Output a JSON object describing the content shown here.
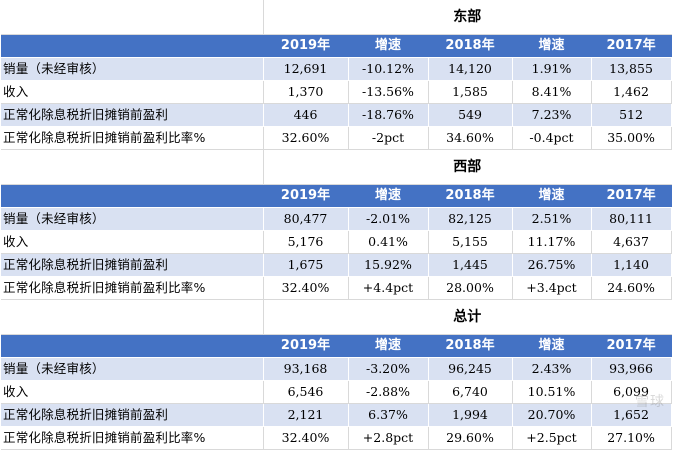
{
  "sections": [
    {
      "region": "东部",
      "headers": [
        "",
        "2019年",
        "增速",
        "2018年",
        "增速",
        "2017年"
      ],
      "rows": [
        {
          "label": "销量（未经审核）",
          "cells": [
            "12,691",
            "-10.12%",
            "14,120",
            "1.91%",
            "13,855"
          ]
        },
        {
          "label": "收入",
          "cells": [
            "1,370",
            "-13.56%",
            "1,585",
            "8.41%",
            "1,462"
          ]
        },
        {
          "label": "正常化除息税折旧摊销前盈利",
          "cells": [
            "446",
            "-18.76%",
            "549",
            "7.23%",
            "512"
          ]
        },
        {
          "label": "正常化除息税折旧摊销前盈利比率%",
          "cells": [
            "32.60%",
            "-2pct",
            "34.60%",
            "-0.4pct",
            "35.00%"
          ]
        }
      ]
    },
    {
      "region": "西部",
      "headers": [
        "",
        "2019年",
        "增速",
        "2018年",
        "增速",
        "2017年"
      ],
      "rows": [
        {
          "label": "销量（未经审核）",
          "cells": [
            "80,477",
            "-2.01%",
            "82,125",
            "2.51%",
            "80,111"
          ]
        },
        {
          "label": "收入",
          "cells": [
            "5,176",
            "0.41%",
            "5,155",
            "11.17%",
            "4,637"
          ]
        },
        {
          "label": "正常化除息税折旧摊销前盈利",
          "cells": [
            "1,675",
            "15.92%",
            "1,445",
            "26.75%",
            "1,140"
          ]
        },
        {
          "label": "正常化除息税折旧摊销前盈利比率%",
          "cells": [
            "32.40%",
            "+4.4pct",
            "28.00%",
            "+3.4pct",
            "24.60%"
          ]
        }
      ]
    },
    {
      "region": "总计",
      "headers": [
        "",
        "2019年",
        "增速",
        "2018年",
        "增速",
        "2017年"
      ],
      "rows": [
        {
          "label": "销量（未经审核）",
          "cells": [
            "93,168",
            "-3.20%",
            "96,245",
            "2.43%",
            "93,966"
          ]
        },
        {
          "label": "收入",
          "cells": [
            "6,546",
            "-2.88%",
            "6,740",
            "10.51%",
            "6,099"
          ]
        },
        {
          "label": "正常化除息税折旧摊销前盈利",
          "cells": [
            "2,121",
            "6.37%",
            "1,994",
            "20.70%",
            "1,652"
          ]
        },
        {
          "label": "正常化除息税折旧摊销前盈利比率%",
          "cells": [
            "32.40%",
            "+2.8pct",
            "29.60%",
            "+2.5pct",
            "27.10%"
          ]
        }
      ]
    }
  ],
  "watermark": "雪球",
  "colors": {
    "header_bg": "#4472c4",
    "header_text": "#ffffff",
    "band": "#d9e1f2"
  }
}
